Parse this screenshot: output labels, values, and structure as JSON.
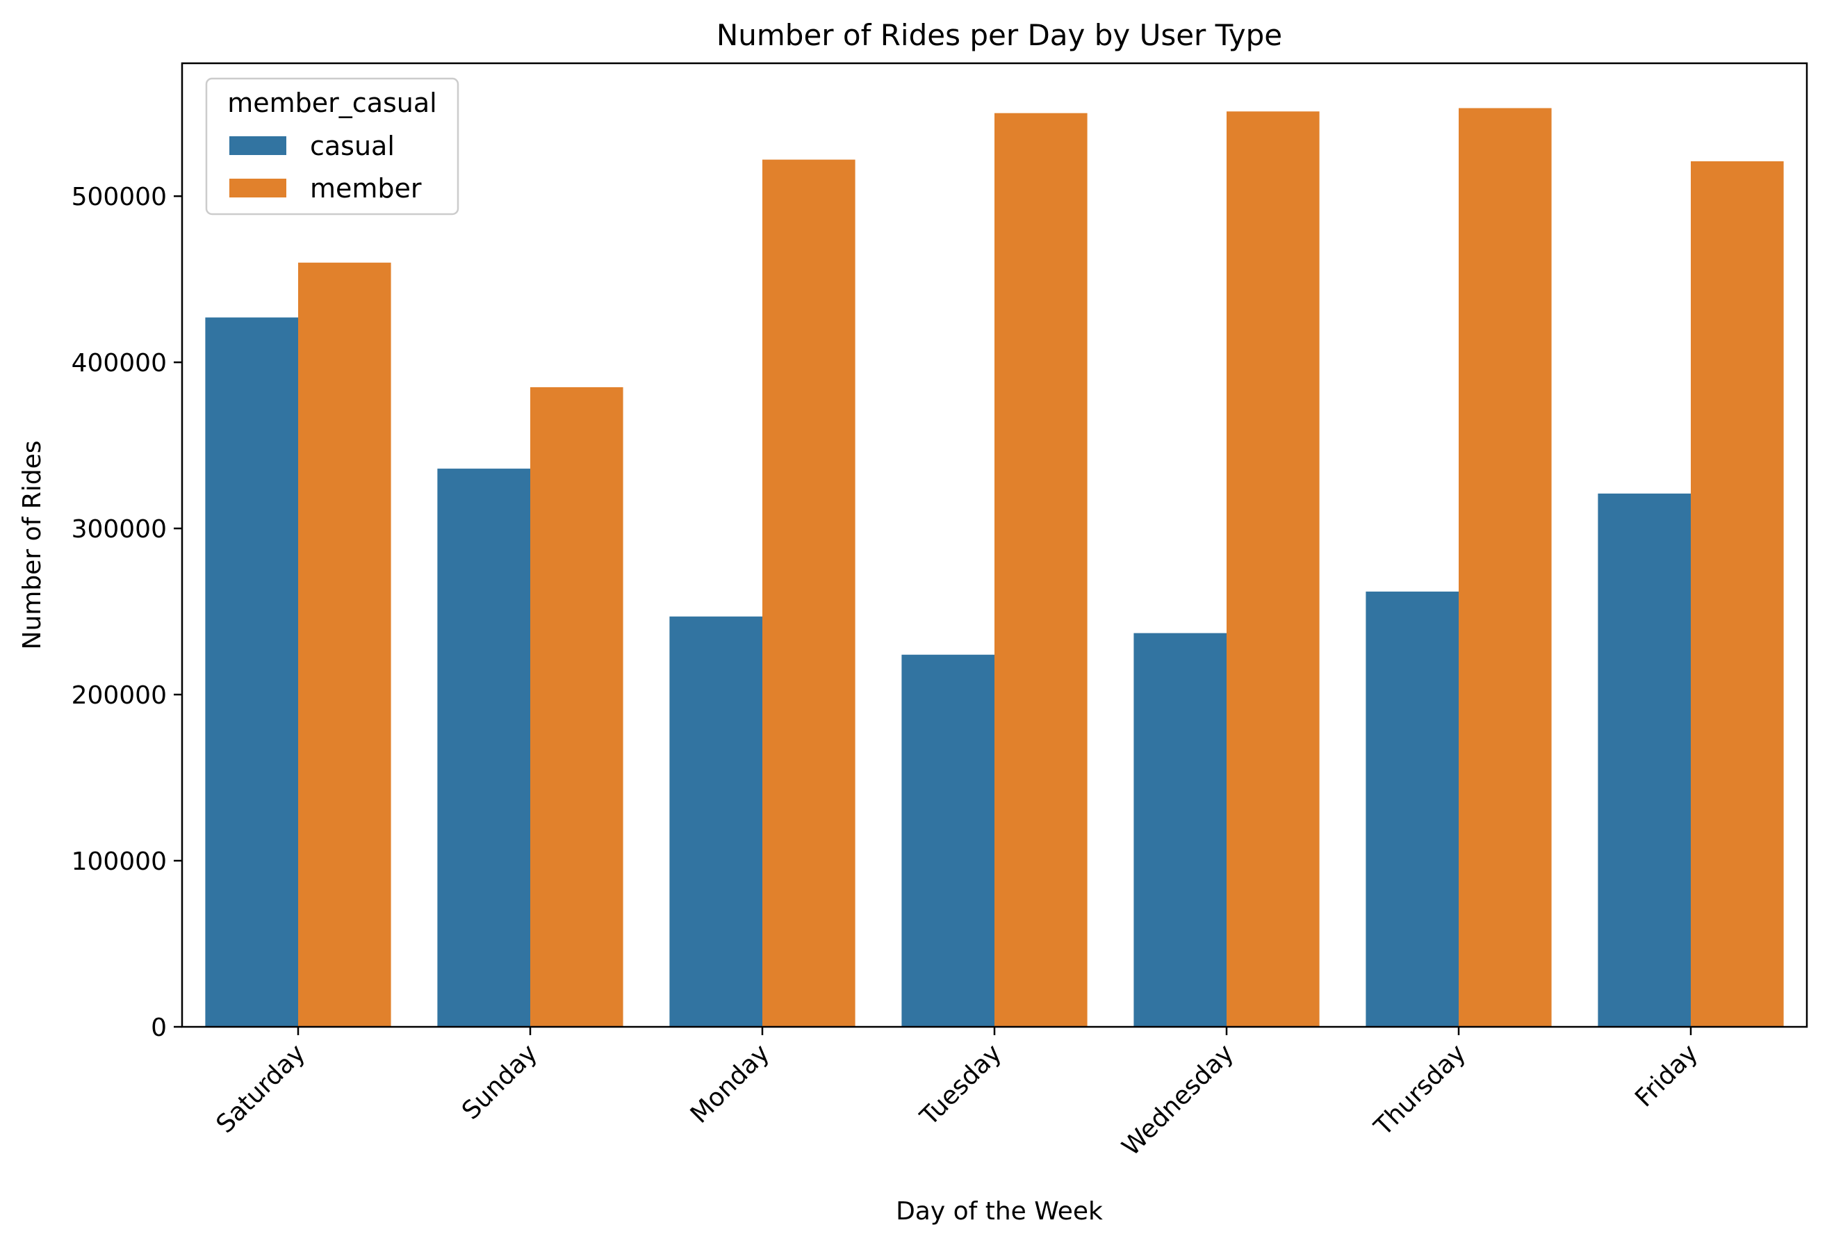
{
  "chart_data": {
    "type": "bar",
    "title": "Number of Rides per Day by User Type",
    "xlabel": "Day of the Week",
    "ylabel": "Number of Rides",
    "categories": [
      "Saturday",
      "Sunday",
      "Monday",
      "Tuesday",
      "Wednesday",
      "Thursday",
      "Friday"
    ],
    "series": [
      {
        "name": "casual",
        "color": "#3274a1",
        "values": [
          427000,
          336000,
          247000,
          224000,
          237000,
          262000,
          321000
        ]
      },
      {
        "name": "member",
        "color": "#e1812c",
        "values": [
          460000,
          385000,
          522000,
          550000,
          551000,
          553000,
          521000
        ]
      }
    ],
    "ylim": [
      0,
      580000
    ],
    "yticks": [
      0,
      100000,
      200000,
      300000,
      400000,
      500000
    ],
    "grid": false,
    "legend": {
      "title": "member_casual",
      "placement": "top-left"
    }
  }
}
